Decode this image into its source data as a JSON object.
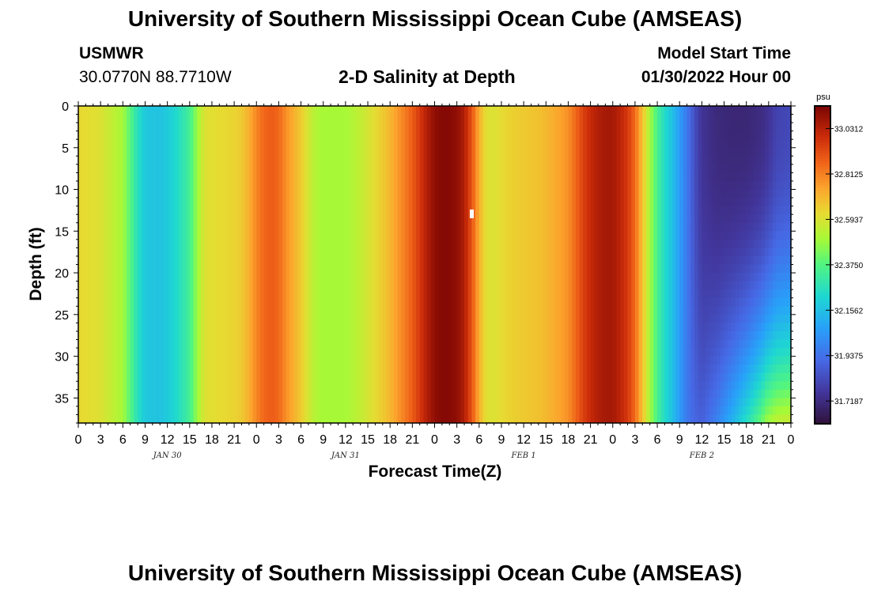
{
  "header": {
    "title": "University of Southern Mississippi Ocean Cube (AMSEAS)",
    "station": "USMWR",
    "coords": "30.0770N  88.7710W",
    "subtitle": "2-D Salinity at Depth",
    "model_start_label": "Model Start Time",
    "model_start_value": "01/30/2022 Hour 00"
  },
  "footer": {
    "title": "University of Southern Mississippi Ocean Cube (AMSEAS)"
  },
  "chart_data": {
    "type": "heatmap",
    "title": "2-D Salinity at Depth",
    "xlabel": "Forecast Time(Z)",
    "ylabel": "Depth (ft)",
    "x_tick_labels": [
      "0",
      "3",
      "6",
      "9",
      "12",
      "15",
      "18",
      "21",
      "0",
      "3",
      "6",
      "9",
      "12",
      "15",
      "18",
      "21",
      "0",
      "3",
      "6",
      "9",
      "12",
      "15",
      "18",
      "21",
      "0",
      "3",
      "6",
      "9",
      "12",
      "15",
      "18",
      "21",
      "0"
    ],
    "xlim_hours": [
      0,
      96
    ],
    "date_labels": [
      {
        "label": "JAN 30",
        "hour": 12
      },
      {
        "label": "JAN 31",
        "hour": 36
      },
      {
        "label": "FEB 1",
        "hour": 60
      },
      {
        "label": "FEB 2",
        "hour": 84
      }
    ],
    "y_ticks": [
      0,
      5,
      10,
      15,
      20,
      25,
      30,
      35
    ],
    "ylim": [
      0,
      38
    ],
    "y_inverted": true,
    "colorbar": {
      "unit": "psu",
      "range": [
        31.609,
        33.14
      ],
      "tick_values": [
        33.0312,
        32.8125,
        32.5937,
        32.375,
        32.1562,
        31.9375,
        31.7187
      ],
      "tick_labels": [
        "33.0312",
        "32.8125",
        "32.5937",
        "32.3750",
        "32.1562",
        "31.9375",
        "31.7187"
      ]
    },
    "surface_salinity_profile": {
      "hours": [
        0,
        3,
        6,
        7,
        8,
        9,
        11,
        13,
        15,
        16,
        17,
        19,
        21,
        22,
        23,
        24,
        25,
        26,
        27,
        28,
        30,
        31,
        32,
        33,
        34,
        36,
        38,
        40,
        42,
        43,
        44,
        45,
        46,
        47,
        48,
        49,
        50,
        51,
        52,
        53,
        54,
        55,
        56,
        57,
        58,
        60,
        62,
        64,
        66,
        67,
        68,
        69,
        70,
        71,
        72,
        73,
        74,
        75,
        76,
        77,
        78,
        79,
        80,
        81,
        82,
        83,
        84,
        86,
        88,
        90,
        92,
        93,
        94,
        96
      ],
      "salinity": [
        32.63,
        32.6,
        32.5,
        32.38,
        32.26,
        32.18,
        32.16,
        32.22,
        32.34,
        32.48,
        32.6,
        32.62,
        32.64,
        32.66,
        32.72,
        32.8,
        32.86,
        32.88,
        32.86,
        32.78,
        32.66,
        32.58,
        32.52,
        32.5,
        32.5,
        32.5,
        32.55,
        32.62,
        32.7,
        32.76,
        32.82,
        32.88,
        32.96,
        33.04,
        33.1,
        33.12,
        33.12,
        33.1,
        33.04,
        32.9,
        32.72,
        32.6,
        32.6,
        32.62,
        32.64,
        32.66,
        32.68,
        32.72,
        32.78,
        32.86,
        32.94,
        33.0,
        33.04,
        33.06,
        33.06,
        33.02,
        32.96,
        32.85,
        32.68,
        32.5,
        32.35,
        32.24,
        32.16,
        32.06,
        31.96,
        31.84,
        31.75,
        31.71,
        31.7,
        31.7,
        31.72,
        31.75,
        31.8,
        31.82
      ]
    },
    "bottom_anomaly": {
      "description_free": true,
      "hours": [
        82,
        96
      ],
      "max_salinity_increase_at_bottom": 0.75
    }
  }
}
